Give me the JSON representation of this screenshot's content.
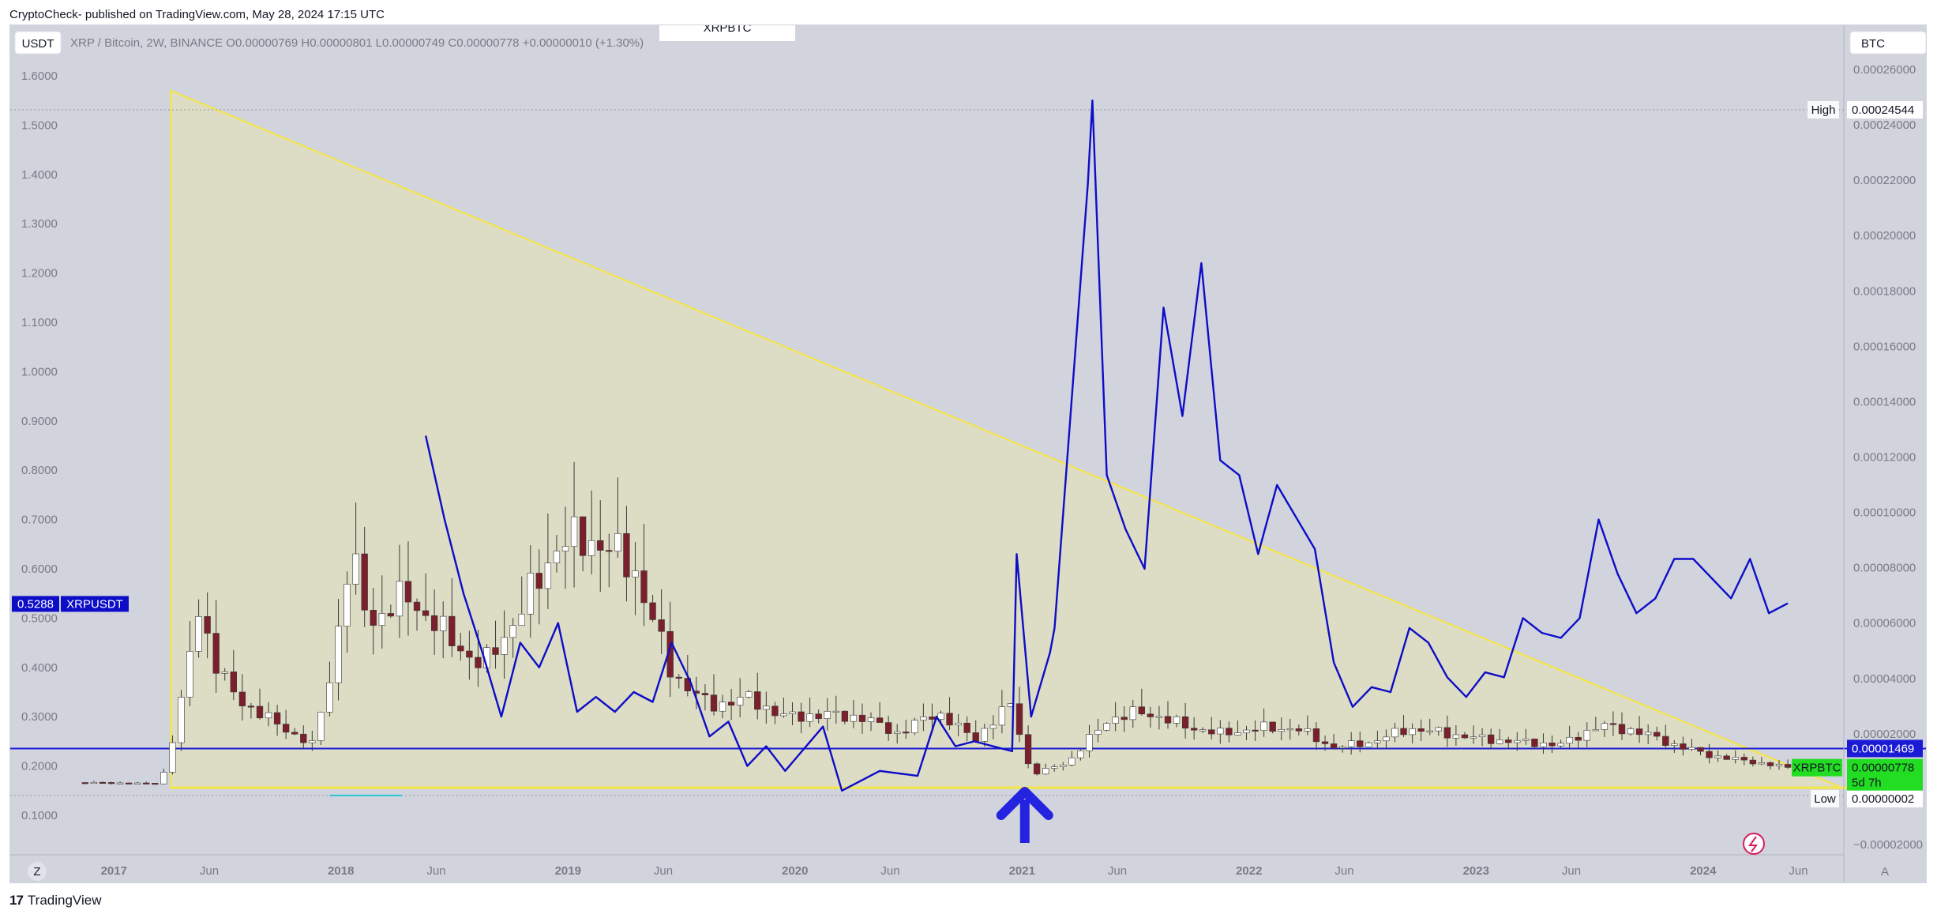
{
  "header": {
    "text": "CryptoCheck- published on TradingView.com, May 28, 2024 17:15 UTC"
  },
  "footer": {
    "brand": "TradingView",
    "logo_icon": "tradingview-logo-icon"
  },
  "chart_title_partial": "XRPBTC",
  "toolbar": {
    "left_currency": "USDT",
    "right_currency": "BTC",
    "z_button": "Z",
    "a_button": "A"
  },
  "legend": {
    "symbol": "XRP / Bitcoin, 2W, BINANCE",
    "o_label": "O",
    "o": "0.00000769",
    "h_label": "H",
    "h": "0.00000801",
    "l_label": "L",
    "l": "0.00000749",
    "c_label": "C",
    "c": "0.00000778",
    "change": "+0.00000010 (+1.30%)"
  },
  "labels": {
    "high_tag": "High",
    "high_value": "0.00024544",
    "low_tag": "Low",
    "low_value": "0.00000002",
    "support_value": "0.00001469",
    "symbol_tag": "XRPBTC",
    "last_value": "0.00000778",
    "countdown": "5d 7h",
    "left_symbol_tag": "XRPUSDT",
    "left_value": "0.5288"
  },
  "colors": {
    "background": "#d1d4dc",
    "triangle_stroke": "#f5e642",
    "triangle_fill": "#dddcc4",
    "usdt_line": "#0d0dc8",
    "support_line": "#1b1bd6",
    "arrow": "#2323e0",
    "candle_up": "#ffffff",
    "candle_down": "#7a1f2b",
    "green_tag": "#22dd22"
  },
  "chart_data": {
    "type": "candlestick",
    "left_axis": {
      "name": "XRPUSDT",
      "ticks": [
        "1.6000",
        "1.5000",
        "1.4000",
        "1.3000",
        "1.2000",
        "1.1000",
        "1.0000",
        "0.9000",
        "0.8000",
        "0.7000",
        "0.6000",
        "0.5000",
        "0.4000",
        "0.3000",
        "0.2000",
        "0.1000"
      ],
      "range": [
        0.1,
        1.6
      ]
    },
    "right_axis": {
      "name": "XRPBTC",
      "ticks": [
        "0.00026000",
        "0.00024000",
        "0.00022000",
        "0.00020000",
        "0.00018000",
        "0.00016000",
        "0.00014000",
        "0.00012000",
        "0.00010000",
        "0.00008000",
        "0.00006000",
        "0.00004000",
        "0.00002000",
        "−0.00002000"
      ],
      "range": [
        -2e-05,
        0.00026
      ]
    },
    "x_ticks": [
      "2017",
      "Jun",
      "2018",
      "Jun",
      "2019",
      "Jun",
      "2020",
      "Jun",
      "2021",
      "Jun",
      "2022",
      "Jun",
      "2023",
      "Jun",
      "2024",
      "Jun"
    ],
    "series": [
      {
        "name": "XRPBTC",
        "style": "candles",
        "close_points": [
          [
            "2016-11",
            2.4e-06
          ],
          [
            "2017-03",
            2e-06
          ],
          [
            "2017-04",
            2.8e-05
          ],
          [
            "2017-05",
            6.6e-05
          ],
          [
            "2017-06",
            4.3e-05
          ],
          [
            "2017-07",
            3.3e-05
          ],
          [
            "2017-09",
            2.4e-05
          ],
          [
            "2017-11",
            1.6e-05
          ],
          [
            "2017-12",
            4.2e-05
          ],
          [
            "2018-01",
            8.5e-05
          ],
          [
            "2018-02",
            6e-05
          ],
          [
            "2018-04",
            7e-05
          ],
          [
            "2018-06",
            5.6e-05
          ],
          [
            "2018-08",
            4.4e-05
          ],
          [
            "2018-10",
            6.4e-05
          ],
          [
            "2018-12",
            8.9e-05
          ],
          [
            "2019-02",
            9e-05
          ],
          [
            "2019-04",
            8e-05
          ],
          [
            "2019-06",
            4.2e-05
          ],
          [
            "2019-08",
            3e-05
          ],
          [
            "2019-10",
            3.3e-05
          ],
          [
            "2019-12",
            2.6e-05
          ],
          [
            "2020-02",
            2.7e-05
          ],
          [
            "2020-04",
            2.6e-05
          ],
          [
            "2020-06",
            2e-05
          ],
          [
            "2020-08",
            2.8e-05
          ],
          [
            "2020-10",
            1.8e-05
          ],
          [
            "2020-12",
            3.1e-05
          ],
          [
            "2021-01",
            5e-06
          ],
          [
            "2021-03",
            1e-05
          ],
          [
            "2021-05",
            2.5e-05
          ],
          [
            "2021-07",
            2.8e-05
          ],
          [
            "2021-09",
            2.3e-05
          ],
          [
            "2021-11",
            2e-05
          ],
          [
            "2022-01",
            2.2e-05
          ],
          [
            "2022-03",
            2.2e-05
          ],
          [
            "2022-05",
            1.5e-05
          ],
          [
            "2022-07",
            1.7e-05
          ],
          [
            "2022-09",
            2.2e-05
          ],
          [
            "2022-11",
            2e-05
          ],
          [
            "2023-01",
            1.8e-05
          ],
          [
            "2023-03",
            1.7e-05
          ],
          [
            "2023-05",
            1.6e-05
          ],
          [
            "2023-07",
            2.3e-05
          ],
          [
            "2023-09",
            2.1e-05
          ],
          [
            "2023-11",
            1.6e-05
          ],
          [
            "2024-01",
            1.2e-05
          ],
          [
            "2024-03",
            1e-05
          ],
          [
            "2024-05",
            7.8e-06
          ]
        ]
      },
      {
        "name": "XRPUSDT",
        "style": "line",
        "points": [
          [
            "2018-05",
            0.87
          ],
          [
            "2018-06",
            0.7
          ],
          [
            "2018-07",
            0.55
          ],
          [
            "2018-08",
            0.43
          ],
          [
            "2018-09",
            0.3
          ],
          [
            "2018-10",
            0.45
          ],
          [
            "2018-11",
            0.4
          ],
          [
            "2018-12",
            0.49
          ],
          [
            "2019-01",
            0.31
          ],
          [
            "2019-02",
            0.34
          ],
          [
            "2019-03",
            0.31
          ],
          [
            "2019-04",
            0.35
          ],
          [
            "2019-05",
            0.33
          ],
          [
            "2019-06",
            0.45
          ],
          [
            "2019-07",
            0.37
          ],
          [
            "2019-08",
            0.26
          ],
          [
            "2019-09",
            0.29
          ],
          [
            "2019-10",
            0.2
          ],
          [
            "2019-11",
            0.24
          ],
          [
            "2019-12",
            0.19
          ],
          [
            "2020-02",
            0.28
          ],
          [
            "2020-03",
            0.15
          ],
          [
            "2020-05",
            0.19
          ],
          [
            "2020-07",
            0.18
          ],
          [
            "2020-08",
            0.3
          ],
          [
            "2020-09",
            0.24
          ],
          [
            "2020-10",
            0.25
          ],
          [
            "2020-12",
            0.23
          ],
          [
            "2020-12",
            0.63
          ],
          [
            "2021-01",
            0.3
          ],
          [
            "2021-02",
            0.43
          ],
          [
            "2021-02",
            0.48
          ],
          [
            "2021-04",
            1.38
          ],
          [
            "2021-04",
            1.55
          ],
          [
            "2021-05",
            0.79
          ],
          [
            "2021-06",
            0.68
          ],
          [
            "2021-07",
            0.6
          ],
          [
            "2021-08",
            1.13
          ],
          [
            "2021-09",
            0.91
          ],
          [
            "2021-10",
            1.22
          ],
          [
            "2021-11",
            0.82
          ],
          [
            "2021-12",
            0.79
          ],
          [
            "2022-01",
            0.63
          ],
          [
            "2022-02",
            0.77
          ],
          [
            "2022-04",
            0.64
          ],
          [
            "2022-05",
            0.41
          ],
          [
            "2022-06",
            0.32
          ],
          [
            "2022-07",
            0.36
          ],
          [
            "2022-08",
            0.35
          ],
          [
            "2022-09",
            0.48
          ],
          [
            "2022-10",
            0.45
          ],
          [
            "2022-11",
            0.38
          ],
          [
            "2022-12",
            0.34
          ],
          [
            "2023-01",
            0.39
          ],
          [
            "2023-02",
            0.38
          ],
          [
            "2023-03",
            0.5
          ],
          [
            "2023-04",
            0.47
          ],
          [
            "2023-05",
            0.46
          ],
          [
            "2023-06",
            0.5
          ],
          [
            "2023-07",
            0.7
          ],
          [
            "2023-08",
            0.59
          ],
          [
            "2023-09",
            0.51
          ],
          [
            "2023-10",
            0.54
          ],
          [
            "2023-11",
            0.62
          ],
          [
            "2023-12",
            0.62
          ],
          [
            "2024-01",
            0.58
          ],
          [
            "2024-02",
            0.54
          ],
          [
            "2024-03",
            0.62
          ],
          [
            "2024-04",
            0.51
          ],
          [
            "2024-05",
            0.53
          ]
        ]
      }
    ],
    "annotations": {
      "triangle": {
        "description": "descending triangle"
      },
      "horizontal_support": 1.469e-05,
      "arrow_date": "2021-01"
    },
    "grid": false
  }
}
